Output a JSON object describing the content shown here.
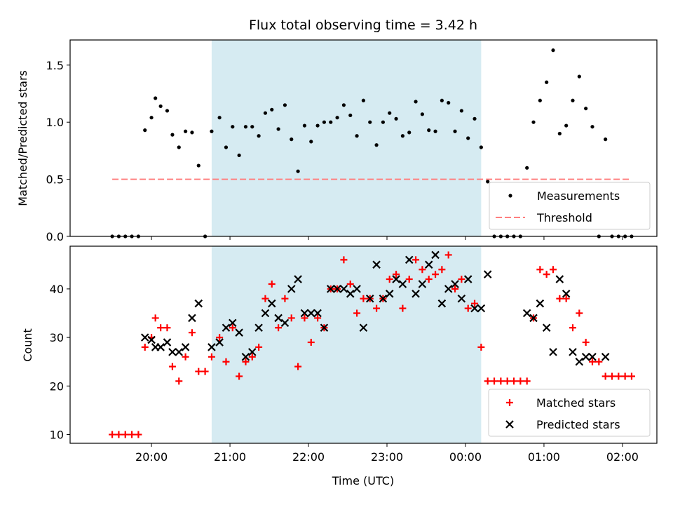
{
  "title": "Flux total observing time = 3.42 h",
  "chart_data": [
    {
      "type": "scatter",
      "panel": "top",
      "ylabel": "Matched/Predicted stars",
      "xlabel": "",
      "ylim": [
        0,
        1.72
      ],
      "yticks": [
        0.0,
        0.5,
        1.0,
        1.5
      ],
      "ytick_labels": [
        "0.0",
        "0.5",
        "1.0",
        "1.5"
      ],
      "shaded_interval": [
        "20:46",
        "00:12"
      ],
      "shaded_color": "#add8e6",
      "legend_position": "lower right",
      "series": [
        {
          "name": "Measurements",
          "marker": "dot",
          "color": "#000000",
          "points": [
            [
              "19:30",
              0
            ],
            [
              "19:35",
              0
            ],
            [
              "19:40",
              0
            ],
            [
              "19:45",
              0
            ],
            [
              "19:50",
              0
            ],
            [
              "19:55",
              0.93
            ],
            [
              "20:00",
              1.04
            ],
            [
              "20:03",
              1.21
            ],
            [
              "20:07",
              1.14
            ],
            [
              "20:12",
              1.1
            ],
            [
              "20:16",
              0.89
            ],
            [
              "20:21",
              0.78
            ],
            [
              "20:26",
              0.92
            ],
            [
              "20:31",
              0.91
            ],
            [
              "20:36",
              0.62
            ],
            [
              "20:41",
              0
            ],
            [
              "20:46",
              0.92
            ],
            [
              "20:52",
              1.04
            ],
            [
              "20:57",
              0.78
            ],
            [
              "21:02",
              0.96
            ],
            [
              "21:07",
              0.71
            ],
            [
              "21:12",
              0.96
            ],
            [
              "21:17",
              0.96
            ],
            [
              "21:22",
              0.88
            ],
            [
              "21:27",
              1.08
            ],
            [
              "21:32",
              1.11
            ],
            [
              "21:37",
              0.94
            ],
            [
              "21:42",
              1.15
            ],
            [
              "21:47",
              0.85
            ],
            [
              "21:52",
              0.57
            ],
            [
              "21:57",
              0.97
            ],
            [
              "22:02",
              0.83
            ],
            [
              "22:07",
              0.97
            ],
            [
              "22:12",
              1.0
            ],
            [
              "22:17",
              1.0
            ],
            [
              "22:22",
              1.04
            ],
            [
              "22:27",
              1.15
            ],
            [
              "22:32",
              1.06
            ],
            [
              "22:37",
              0.88
            ],
            [
              "22:42",
              1.19
            ],
            [
              "22:47",
              1.0
            ],
            [
              "22:52",
              0.8
            ],
            [
              "22:57",
              1.0
            ],
            [
              "23:02",
              1.08
            ],
            [
              "23:07",
              1.03
            ],
            [
              "23:12",
              0.88
            ],
            [
              "23:17",
              0.91
            ],
            [
              "23:22",
              1.18
            ],
            [
              "23:27",
              1.07
            ],
            [
              "23:32",
              0.93
            ],
            [
              "23:37",
              0.92
            ],
            [
              "23:42",
              1.19
            ],
            [
              "23:47",
              1.17
            ],
            [
              "23:52",
              0.92
            ],
            [
              "23:57",
              1.1
            ],
            [
              "00:02",
              0.86
            ],
            [
              "00:07",
              1.03
            ],
            [
              "00:12",
              0.78
            ],
            [
              "00:17",
              0.48
            ],
            [
              "00:22",
              0
            ],
            [
              "00:27",
              0
            ],
            [
              "00:32",
              0
            ],
            [
              "00:37",
              0
            ],
            [
              "00:42",
              0
            ],
            [
              "00:47",
              0.6
            ],
            [
              "00:52",
              1.0
            ],
            [
              "00:57",
              1.19
            ],
            [
              "01:02",
              1.35
            ],
            [
              "01:07",
              1.63
            ],
            [
              "01:12",
              0.9
            ],
            [
              "01:17",
              0.97
            ],
            [
              "01:22",
              1.19
            ],
            [
              "01:27",
              1.4
            ],
            [
              "01:32",
              1.12
            ],
            [
              "01:37",
              0.96
            ],
            [
              "01:42",
              0
            ],
            [
              "01:47",
              0.85
            ],
            [
              "01:52",
              0
            ],
            [
              "01:57",
              0
            ],
            [
              "02:02",
              0
            ],
            [
              "02:07",
              0
            ]
          ]
        },
        {
          "name": "Threshold",
          "marker": "dashed-line",
          "color": "#ff7f7f",
          "points": [
            [
              "19:30",
              0.5
            ],
            [
              "02:07",
              0.5
            ]
          ]
        }
      ]
    },
    {
      "type": "scatter",
      "panel": "bottom",
      "ylabel": "Count",
      "xlabel": "Time (UTC)",
      "ylim": [
        8.2,
        48.8
      ],
      "yticks": [
        10,
        20,
        30,
        40
      ],
      "ytick_labels": [
        "10",
        "20",
        "30",
        "40"
      ],
      "x_tick_labels": [
        "20:00",
        "21:00",
        "22:00",
        "23:00",
        "00:00",
        "01:00",
        "02:00"
      ],
      "shaded_interval": [
        "20:46",
        "00:12"
      ],
      "shaded_color": "#add8e6",
      "legend_position": "lower right",
      "series": [
        {
          "name": "Matched stars",
          "marker": "plus",
          "color": "#ff0000",
          "points": [
            [
              "19:30",
              10
            ],
            [
              "19:35",
              10
            ],
            [
              "19:40",
              10
            ],
            [
              "19:45",
              10
            ],
            [
              "19:50",
              10
            ],
            [
              "19:55",
              28
            ],
            [
              "20:00",
              30
            ],
            [
              "20:03",
              34
            ],
            [
              "20:07",
              32
            ],
            [
              "20:12",
              32
            ],
            [
              "20:16",
              24
            ],
            [
              "20:21",
              21
            ],
            [
              "20:26",
              26
            ],
            [
              "20:31",
              31
            ],
            [
              "20:36",
              23
            ],
            [
              "20:41",
              23
            ],
            [
              "20:46",
              26
            ],
            [
              "20:52",
              30
            ],
            [
              "20:57",
              25
            ],
            [
              "21:02",
              32
            ],
            [
              "21:07",
              22
            ],
            [
              "21:12",
              25
            ],
            [
              "21:17",
              26
            ],
            [
              "21:22",
              28
            ],
            [
              "21:27",
              38
            ],
            [
              "21:32",
              41
            ],
            [
              "21:37",
              32
            ],
            [
              "21:42",
              38
            ],
            [
              "21:47",
              34
            ],
            [
              "21:52",
              24
            ],
            [
              "21:57",
              34
            ],
            [
              "22:02",
              29
            ],
            [
              "22:07",
              34
            ],
            [
              "22:12",
              32
            ],
            [
              "22:17",
              40
            ],
            [
              "22:22",
              40
            ],
            [
              "22:27",
              46
            ],
            [
              "22:32",
              41
            ],
            [
              "22:37",
              35
            ],
            [
              "22:42",
              38
            ],
            [
              "22:47",
              38
            ],
            [
              "22:52",
              36
            ],
            [
              "22:57",
              38
            ],
            [
              "23:02",
              42
            ],
            [
              "23:07",
              43
            ],
            [
              "23:12",
              36
            ],
            [
              "23:17",
              42
            ],
            [
              "23:22",
              46
            ],
            [
              "23:27",
              44
            ],
            [
              "23:32",
              42
            ],
            [
              "23:37",
              43
            ],
            [
              "23:42",
              44
            ],
            [
              "23:47",
              47
            ],
            [
              "23:52",
              40
            ],
            [
              "23:57",
              42
            ],
            [
              "00:02",
              36
            ],
            [
              "00:07",
              37
            ],
            [
              "00:12",
              28
            ],
            [
              "00:17",
              21
            ],
            [
              "00:22",
              21
            ],
            [
              "00:27",
              21
            ],
            [
              "00:32",
              21
            ],
            [
              "00:37",
              21
            ],
            [
              "00:42",
              21
            ],
            [
              "00:47",
              21
            ],
            [
              "00:52",
              34
            ],
            [
              "00:57",
              44
            ],
            [
              "01:02",
              43
            ],
            [
              "01:07",
              44
            ],
            [
              "01:12",
              38
            ],
            [
              "01:17",
              38
            ],
            [
              "01:22",
              32
            ],
            [
              "01:27",
              35
            ],
            [
              "01:32",
              29
            ],
            [
              "01:37",
              25
            ],
            [
              "01:42",
              25
            ],
            [
              "01:47",
              22
            ],
            [
              "01:52",
              22
            ],
            [
              "01:57",
              22
            ],
            [
              "02:02",
              22
            ],
            [
              "02:07",
              22
            ]
          ]
        },
        {
          "name": "Predicted stars",
          "marker": "x",
          "color": "#000000",
          "points": [
            [
              "19:55",
              30
            ],
            [
              "20:00",
              29.5
            ],
            [
              "20:03",
              28
            ],
            [
              "20:07",
              28
            ],
            [
              "20:12",
              29
            ],
            [
              "20:16",
              27
            ],
            [
              "20:21",
              27
            ],
            [
              "20:26",
              28
            ],
            [
              "20:31",
              34
            ],
            [
              "20:36",
              37
            ],
            [
              "20:46",
              28
            ],
            [
              "20:52",
              29
            ],
            [
              "20:57",
              32
            ],
            [
              "21:02",
              33
            ],
            [
              "21:07",
              31
            ],
            [
              "21:12",
              26
            ],
            [
              "21:17",
              27
            ],
            [
              "21:22",
              32
            ],
            [
              "21:27",
              35
            ],
            [
              "21:32",
              37
            ],
            [
              "21:37",
              34
            ],
            [
              "21:42",
              33
            ],
            [
              "21:47",
              40
            ],
            [
              "21:52",
              42
            ],
            [
              "21:57",
              35
            ],
            [
              "22:02",
              35
            ],
            [
              "22:07",
              35
            ],
            [
              "22:12",
              32
            ],
            [
              "22:17",
              40
            ],
            [
              "22:22",
              40
            ],
            [
              "22:27",
              40
            ],
            [
              "22:32",
              39
            ],
            [
              "22:37",
              40
            ],
            [
              "22:42",
              32
            ],
            [
              "22:47",
              38
            ],
            [
              "22:52",
              45
            ],
            [
              "22:57",
              38
            ],
            [
              "23:02",
              39
            ],
            [
              "23:07",
              42
            ],
            [
              "23:12",
              41
            ],
            [
              "23:17",
              46
            ],
            [
              "23:22",
              39
            ],
            [
              "23:27",
              41
            ],
            [
              "23:32",
              45
            ],
            [
              "23:37",
              47
            ],
            [
              "23:42",
              37
            ],
            [
              "23:47",
              40
            ],
            [
              "23:52",
              41
            ],
            [
              "23:57",
              38
            ],
            [
              "00:02",
              42
            ],
            [
              "00:07",
              36
            ],
            [
              "00:12",
              36
            ],
            [
              "00:17",
              43
            ],
            [
              "00:47",
              35
            ],
            [
              "00:52",
              34
            ],
            [
              "00:57",
              37
            ],
            [
              "01:02",
              32
            ],
            [
              "01:07",
              27
            ],
            [
              "01:12",
              42
            ],
            [
              "01:17",
              39
            ],
            [
              "01:22",
              27
            ],
            [
              "01:27",
              25
            ],
            [
              "01:32",
              26
            ],
            [
              "01:37",
              26
            ],
            [
              "01:47",
              26
            ]
          ]
        }
      ]
    }
  ]
}
